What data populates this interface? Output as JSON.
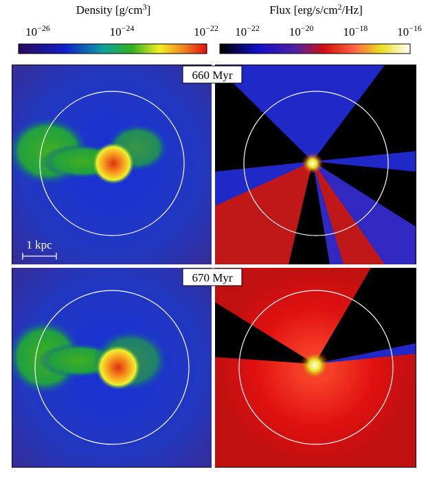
{
  "colorbars": [
    {
      "label": {
        "text": "Density [g/cm",
        "sup": "3",
        "tail": "]"
      },
      "ticks": [
        {
          "base": "10",
          "exponent": "−26"
        },
        {
          "base": "10",
          "exponent": "−24"
        },
        {
          "base": "10",
          "exponent": "−22"
        }
      ]
    },
    {
      "label": {
        "text": "Flux [erg/s/cm",
        "sup": "2",
        "tail": "/Hz]"
      },
      "ticks": [
        {
          "base": "10",
          "exponent": "−22"
        },
        {
          "base": "10",
          "exponent": "−20"
        },
        {
          "base": "10",
          "exponent": "−18"
        },
        {
          "base": "10",
          "exponent": "−16"
        }
      ]
    }
  ],
  "panels": [
    {
      "label": "660 Myr"
    },
    {
      "label": "670 Myr"
    }
  ],
  "scale_bar": "1 kpc"
}
